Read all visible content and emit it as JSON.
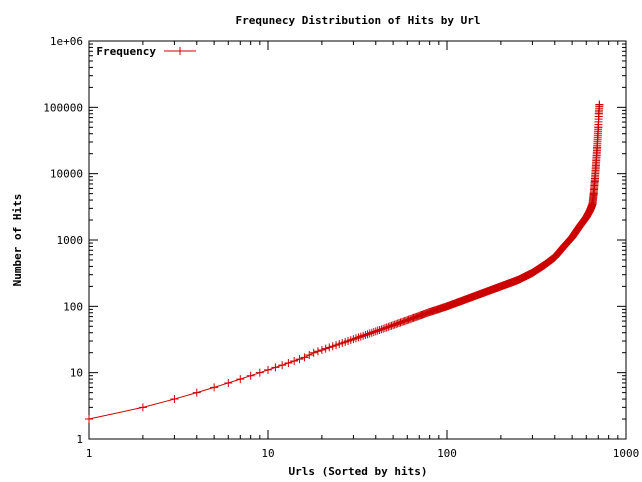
{
  "chart_data": {
    "type": "line",
    "title": "Frequnecy Distribution of Hits by Url",
    "xlabel": "Urls (Sorted by hits)",
    "ylabel": "Number of Hits",
    "x_scale": "log",
    "y_scale": "log",
    "xlim": [
      1,
      1000
    ],
    "ylim": [
      1,
      1000000
    ],
    "x_ticks": [
      "1",
      "10",
      "100",
      "1000"
    ],
    "y_ticks": [
      "1",
      "10",
      "100",
      "1000",
      "10000",
      "100000",
      "1e+06"
    ],
    "grid": false,
    "legend_position": "top-left",
    "series": [
      {
        "name": "Frequency",
        "color": "#cc0000",
        "marker": "+",
        "x": [
          1,
          2,
          3,
          4,
          5,
          6,
          7,
          8,
          9,
          10,
          12,
          14,
          16,
          18,
          20,
          25,
          30,
          35,
          40,
          50,
          60,
          70,
          80,
          100,
          120,
          150,
          180,
          200,
          250,
          300,
          350,
          400,
          450,
          500,
          550,
          600,
          630,
          650,
          660,
          670,
          680,
          690,
          700,
          705,
          710
        ],
        "values": [
          2,
          3,
          4,
          5,
          6,
          7,
          8,
          9,
          10,
          11,
          13,
          15,
          17,
          20,
          22,
          27,
          32,
          37,
          42,
          52,
          62,
          72,
          82,
          100,
          120,
          150,
          180,
          200,
          250,
          320,
          420,
          550,
          800,
          1100,
          1600,
          2200,
          2800,
          3500,
          5000,
          8000,
          14000,
          25000,
          50000,
          80000,
          110000
        ]
      }
    ]
  }
}
